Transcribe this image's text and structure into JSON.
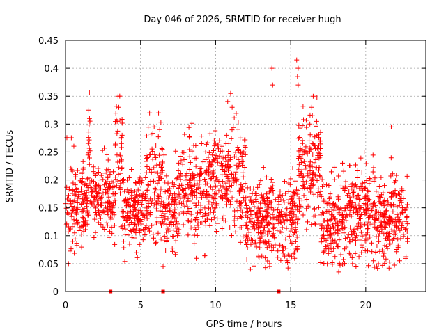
{
  "chart_data": {
    "type": "scatter",
    "title": "Day 046 of 2026, SRMTID for receiver hugh",
    "xlabel": "GPS time / hours",
    "ylabel": "SRMTID / TECUs",
    "xlim": [
      0,
      24
    ],
    "ylim": [
      0,
      0.45
    ],
    "xticks": [
      0,
      5,
      10,
      15,
      20
    ],
    "xtick_labels": [
      "0",
      "5",
      "10",
      "15",
      "20"
    ],
    "yticks": [
      0,
      0.05,
      0.1,
      0.15,
      0.2,
      0.25,
      0.3,
      0.35,
      0.4,
      0.45
    ],
    "ytick_labels": [
      "0",
      "0.05",
      "0.1",
      "0.15",
      "0.2",
      "0.25",
      "0.3",
      "0.35",
      "0.4",
      "0.45"
    ],
    "grid": true,
    "marker": "+",
    "color": "#ff0000",
    "x_range_hours": [
      0.0,
      22.8
    ],
    "point_count": 2200,
    "seed": 46,
    "bands": [
      {
        "x": [
          0.0,
          1.5
        ],
        "mean": 0.16,
        "sd": 0.04
      },
      {
        "x": [
          1.5,
          1.7
        ],
        "mean": 0.24,
        "sd": 0.05
      },
      {
        "x": [
          1.7,
          3.3
        ],
        "mean": 0.17,
        "sd": 0.035
      },
      {
        "x": [
          3.3,
          3.8
        ],
        "mean": 0.24,
        "sd": 0.045
      },
      {
        "x": [
          3.8,
          5.3
        ],
        "mean": 0.14,
        "sd": 0.035
      },
      {
        "x": [
          5.3,
          6.5
        ],
        "mean": 0.19,
        "sd": 0.05
      },
      {
        "x": [
          6.5,
          7.5
        ],
        "mean": 0.15,
        "sd": 0.04
      },
      {
        "x": [
          7.5,
          9.5
        ],
        "mean": 0.18,
        "sd": 0.045
      },
      {
        "x": [
          9.5,
          11.2
        ],
        "mean": 0.2,
        "sd": 0.045
      },
      {
        "x": [
          11.2,
          12.0
        ],
        "mean": 0.2,
        "sd": 0.05
      },
      {
        "x": [
          12.0,
          14.5
        ],
        "mean": 0.13,
        "sd": 0.035
      },
      {
        "x": [
          14.5,
          15.5
        ],
        "mean": 0.13,
        "sd": 0.04
      },
      {
        "x": [
          15.5,
          17.0
        ],
        "mean": 0.22,
        "sd": 0.05
      },
      {
        "x": [
          17.0,
          18.5
        ],
        "mean": 0.12,
        "sd": 0.04
      },
      {
        "x": [
          18.5,
          20.5
        ],
        "mean": 0.14,
        "sd": 0.045
      },
      {
        "x": [
          20.5,
          22.8
        ],
        "mean": 0.13,
        "sd": 0.04
      }
    ],
    "spikes": [
      {
        "x": 1.55,
        "y": 0.325
      },
      {
        "x": 1.6,
        "y": 0.31
      },
      {
        "x": 3.5,
        "y": 0.35
      },
      {
        "x": 3.55,
        "y": 0.33
      },
      {
        "x": 5.6,
        "y": 0.32
      },
      {
        "x": 6.2,
        "y": 0.32
      },
      {
        "x": 11.0,
        "y": 0.355
      },
      {
        "x": 11.1,
        "y": 0.33
      },
      {
        "x": 13.75,
        "y": 0.4
      },
      {
        "x": 13.8,
        "y": 0.37
      },
      {
        "x": 15.4,
        "y": 0.415
      },
      {
        "x": 15.5,
        "y": 0.4
      },
      {
        "x": 15.45,
        "y": 0.385
      },
      {
        "x": 15.5,
        "y": 0.37
      },
      {
        "x": 16.5,
        "y": 0.35
      },
      {
        "x": 16.4,
        "y": 0.33
      },
      {
        "x": 19.9,
        "y": 0.25
      },
      {
        "x": 21.7,
        "y": 0.295
      },
      {
        "x": 6.5,
        "y": 0.045
      },
      {
        "x": 0.2,
        "y": 0.05
      },
      {
        "x": 13.6,
        "y": 0.05
      },
      {
        "x": 18.2,
        "y": 0.035
      }
    ],
    "zero_points": [
      {
        "x": 3.0,
        "y": 0.0
      },
      {
        "x": 14.2,
        "y": 0.0
      },
      {
        "x": 6.5,
        "y": 0.0
      }
    ]
  }
}
